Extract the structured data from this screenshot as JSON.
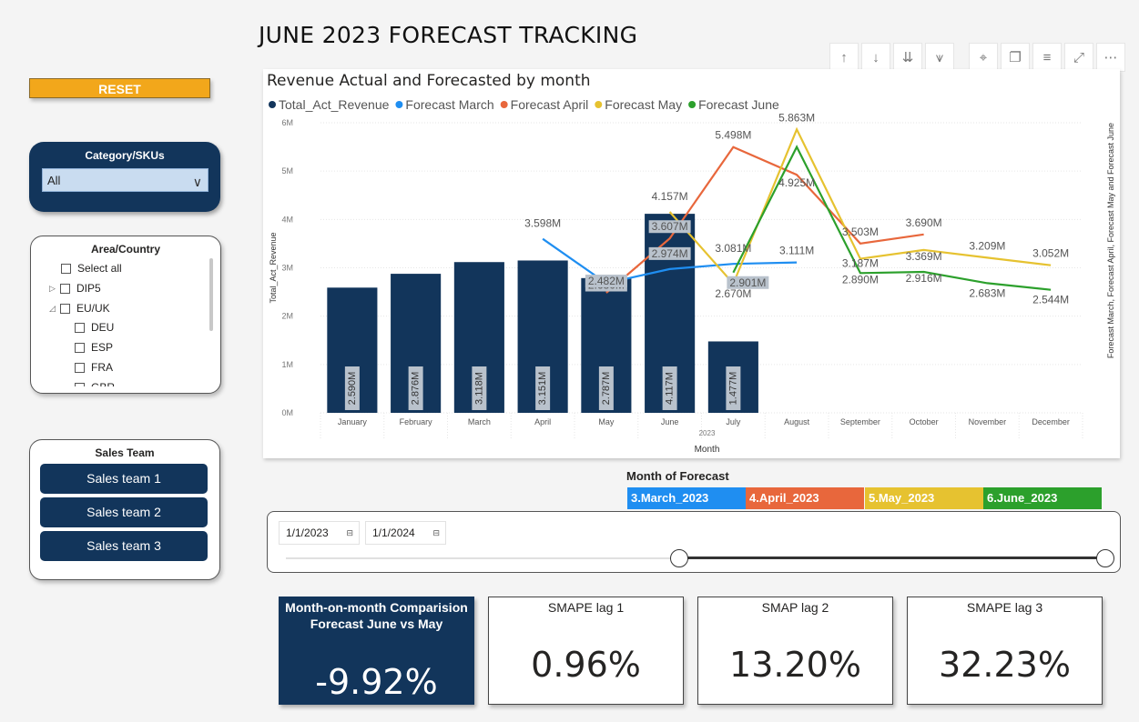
{
  "page": {
    "title": "JUNE 2023 FORECAST TRACKING"
  },
  "reset": {
    "label": "RESET"
  },
  "category_filter": {
    "title": "Category/SKUs",
    "selected": "All"
  },
  "area_filter": {
    "title": "Area/Country",
    "items": [
      {
        "label": "Select all",
        "expander": ""
      },
      {
        "label": "DIP5",
        "expander": "collapsed"
      },
      {
        "label": "EU/UK",
        "expander": "expanded"
      },
      {
        "label": "DEU",
        "expander": ""
      },
      {
        "label": "ESP",
        "expander": ""
      },
      {
        "label": "FRA",
        "expander": ""
      },
      {
        "label": "GBR",
        "expander": ""
      }
    ]
  },
  "sales_team": {
    "title": "Sales Team",
    "buttons": [
      "Sales team 1",
      "Sales team 2",
      "Sales team 3"
    ]
  },
  "toolbar": {
    "icons": [
      "drill-up-icon",
      "drill-down-icon",
      "expand-all-down-icon",
      "expand-hierarchy-icon",
      "pin-icon",
      "copy-icon",
      "filter-icon",
      "focus-mode-icon",
      "more-options-icon"
    ]
  },
  "chart_data": {
    "type": "bar",
    "title": "Revenue Actual and Forecasted by month",
    "xlabel": "Month",
    "x_sublabel": "2023",
    "ylabel": "Total_Act_Revenue",
    "y2label": "Forecast March, Forecast April, Forecast May and Forecast June",
    "ylim": [
      0,
      6000000
    ],
    "y_ticks": [
      "0M",
      "1M",
      "2M",
      "3M",
      "4M",
      "5M",
      "6M"
    ],
    "legend_position": "top-left",
    "categories": [
      "January",
      "February",
      "March",
      "April",
      "May",
      "June",
      "July",
      "August",
      "September",
      "October",
      "November",
      "December"
    ],
    "bars": {
      "name": "Total_Act_Revenue",
      "color": "#12355b",
      "values": [
        2590000,
        2876000,
        3118000,
        3151000,
        2787000,
        4117000,
        1477000,
        null,
        null,
        null,
        null,
        null
      ],
      "labels": [
        "2.590M",
        "2.876M",
        "3.118M",
        "3.151M",
        "2.787M",
        "4.117M",
        "1.477M",
        "",
        "",
        "",
        "",
        ""
      ]
    },
    "series": [
      {
        "name": "Forecast March",
        "color": "#1f8ef1",
        "values": [
          null,
          null,
          null,
          3598000,
          2680000,
          2974000,
          3081000,
          3111000,
          null,
          null,
          null,
          null
        ],
        "labels": [
          "",
          "",
          "",
          "3.598M",
          "2.680M",
          "2.974M",
          "3.081M",
          "3.111M",
          "",
          "",
          "",
          ""
        ]
      },
      {
        "name": "Forecast April",
        "color": "#e8673c",
        "values": [
          null,
          null,
          null,
          null,
          2482000,
          3607000,
          5498000,
          4925000,
          3503000,
          3690000,
          null,
          null
        ],
        "labels": [
          "",
          "",
          "",
          "",
          "2.482M",
          "3.607M",
          "5.498M",
          "4.925M",
          "3.503M",
          "3.690M",
          "",
          ""
        ]
      },
      {
        "name": "Forecast May",
        "color": "#e6c230",
        "values": [
          null,
          null,
          null,
          null,
          null,
          4157000,
          2670000,
          5863000,
          3187000,
          3369000,
          3209000,
          3052000
        ],
        "labels": [
          "",
          "",
          "",
          "",
          "",
          "4.157M",
          "2.670M",
          "5.863M",
          "3.187M",
          "3.369M",
          "3.209M",
          "3.052M"
        ]
      },
      {
        "name": "Forecast June",
        "color": "#2ca02c",
        "values": [
          null,
          null,
          null,
          null,
          null,
          null,
          2901000,
          5500000,
          2890000,
          2916000,
          2683000,
          2544000
        ],
        "labels": [
          "",
          "",
          "",
          "",
          "",
          "",
          "2.901M",
          "",
          "2.890M",
          "2.916M",
          "2.683M",
          "2.544M"
        ]
      }
    ]
  },
  "month_of_forecast": {
    "title": "Month of Forecast",
    "items": [
      {
        "label": "3.March_2023",
        "color": "#1f8ef1"
      },
      {
        "label": "4.April_2023",
        "color": "#e8673c"
      },
      {
        "label": "5.May_2023",
        "color": "#e6c230"
      },
      {
        "label": "6.June_2023",
        "color": "#2ca02c"
      }
    ]
  },
  "date_range": {
    "start": "1/1/2023",
    "end": "1/1/2024",
    "handle_positions": [
      0.48,
      1.0
    ]
  },
  "kpis": {
    "mom": {
      "label": "Month-on-month Comparision Forecast June vs May",
      "value": "-9.92%"
    },
    "smape1": {
      "label": "SMAPE lag 1",
      "value": "0.96%"
    },
    "smape2": {
      "label": "SMAP lag 2",
      "value": "13.20%"
    },
    "smape3": {
      "label": "SMAPE lag 3",
      "value": "32.23%"
    }
  }
}
